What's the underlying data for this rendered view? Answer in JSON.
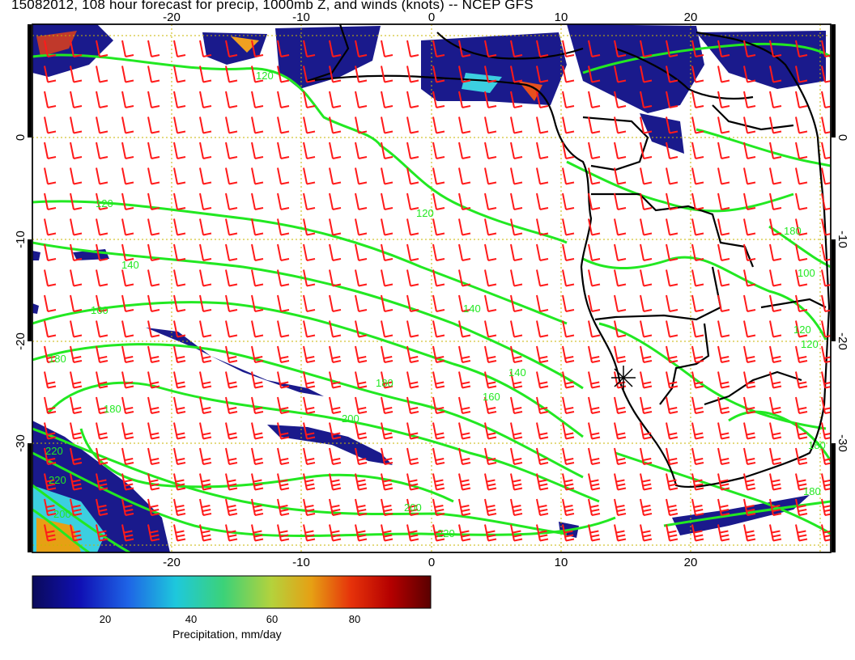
{
  "title": "15082012, 108 hour forecast for precip, 1000mb Z, and winds (knots) -- NCEP GFS",
  "map": {
    "lon_ticks": [
      "-20",
      "-10",
      "0",
      "10",
      "20"
    ],
    "lat_ticks": [
      "0",
      "-10",
      "-20",
      "-30"
    ],
    "contour_labels": [
      "120",
      "120",
      "120",
      "140",
      "140",
      "140",
      "160",
      "160",
      "180",
      "180",
      "180",
      "200",
      "200",
      "220",
      "220",
      "220",
      "200",
      "180",
      "100",
      "120",
      "120",
      "180",
      "180"
    ],
    "colors": {
      "contour": "#22e822",
      "wind_barb": "#ff1a1a",
      "coastline": "#000000",
      "grid": "#c8b400",
      "precip_low": "#1a1a8c",
      "precip_high": "#8b0000"
    },
    "marker": "asterisk-marker"
  },
  "colorbar": {
    "labels": [
      "20",
      "40",
      "60",
      "80"
    ],
    "title": "Precipitation, mm/day",
    "stops": [
      "#0a0a5a",
      "#1010b4",
      "#1e64e6",
      "#1ec8dc",
      "#3cd278",
      "#b4d23c",
      "#e6a014",
      "#e6320a",
      "#b40000",
      "#5a0000"
    ]
  }
}
